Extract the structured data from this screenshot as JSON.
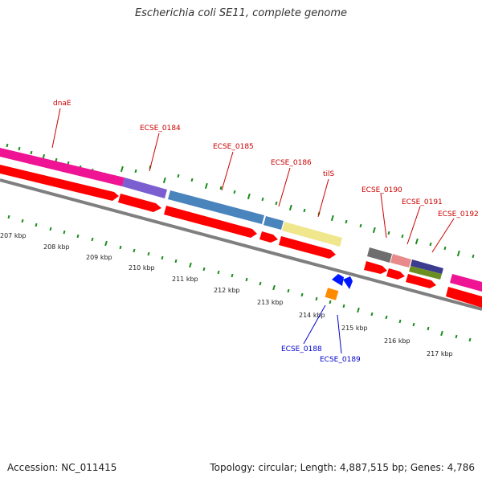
{
  "title": "Escherichia coli SE11, complete genome",
  "footer": {
    "accession": "Accession: NC_011415",
    "summary": "Topology: circular; Length: 4,887,515 bp; Genes: 4,786"
  },
  "scale": {
    "tick_labels": [
      "207 kbp",
      "208 kbp",
      "209 kbp",
      "210 kbp",
      "211 kbp",
      "212 kbp",
      "213 kbp",
      "214 kbp",
      "215 kbp",
      "216 kbp",
      "217 kbp"
    ]
  },
  "genes_top": [
    {
      "id": "dnaE",
      "label": "dnaE",
      "color": "#cc0000"
    },
    {
      "id": "ECSE_0184",
      "label": "ECSE_0184",
      "color": "#cc0000"
    },
    {
      "id": "ECSE_0185",
      "label": "ECSE_0185",
      "color": "#cc0000"
    },
    {
      "id": "ECSE_0186",
      "label": "ECSE_0186",
      "color": "#cc0000"
    },
    {
      "id": "tilS",
      "label": "tilS",
      "color": "#cc0000"
    },
    {
      "id": "ECSE_0190",
      "label": "ECSE_0190",
      "color": "#cc0000"
    },
    {
      "id": "ECSE_0191",
      "label": "ECSE_0191",
      "color": "#cc0000"
    },
    {
      "id": "ECSE_0192",
      "label": "ECSE_0192",
      "color": "#cc0000"
    }
  ],
  "genes_bottom": [
    {
      "id": "ECSE_0188",
      "label": "ECSE_0188",
      "color": "#0000cc"
    },
    {
      "id": "ECSE_0189",
      "label": "ECSE_0189",
      "color": "#0000cc"
    }
  ],
  "colors": {
    "forward_arrow": "#ff0000",
    "backbone": "#7f7f7f",
    "tick": "#1a8c1a",
    "reverse_gene": "#0018ff",
    "rna_gene": "#ff8c00"
  }
}
